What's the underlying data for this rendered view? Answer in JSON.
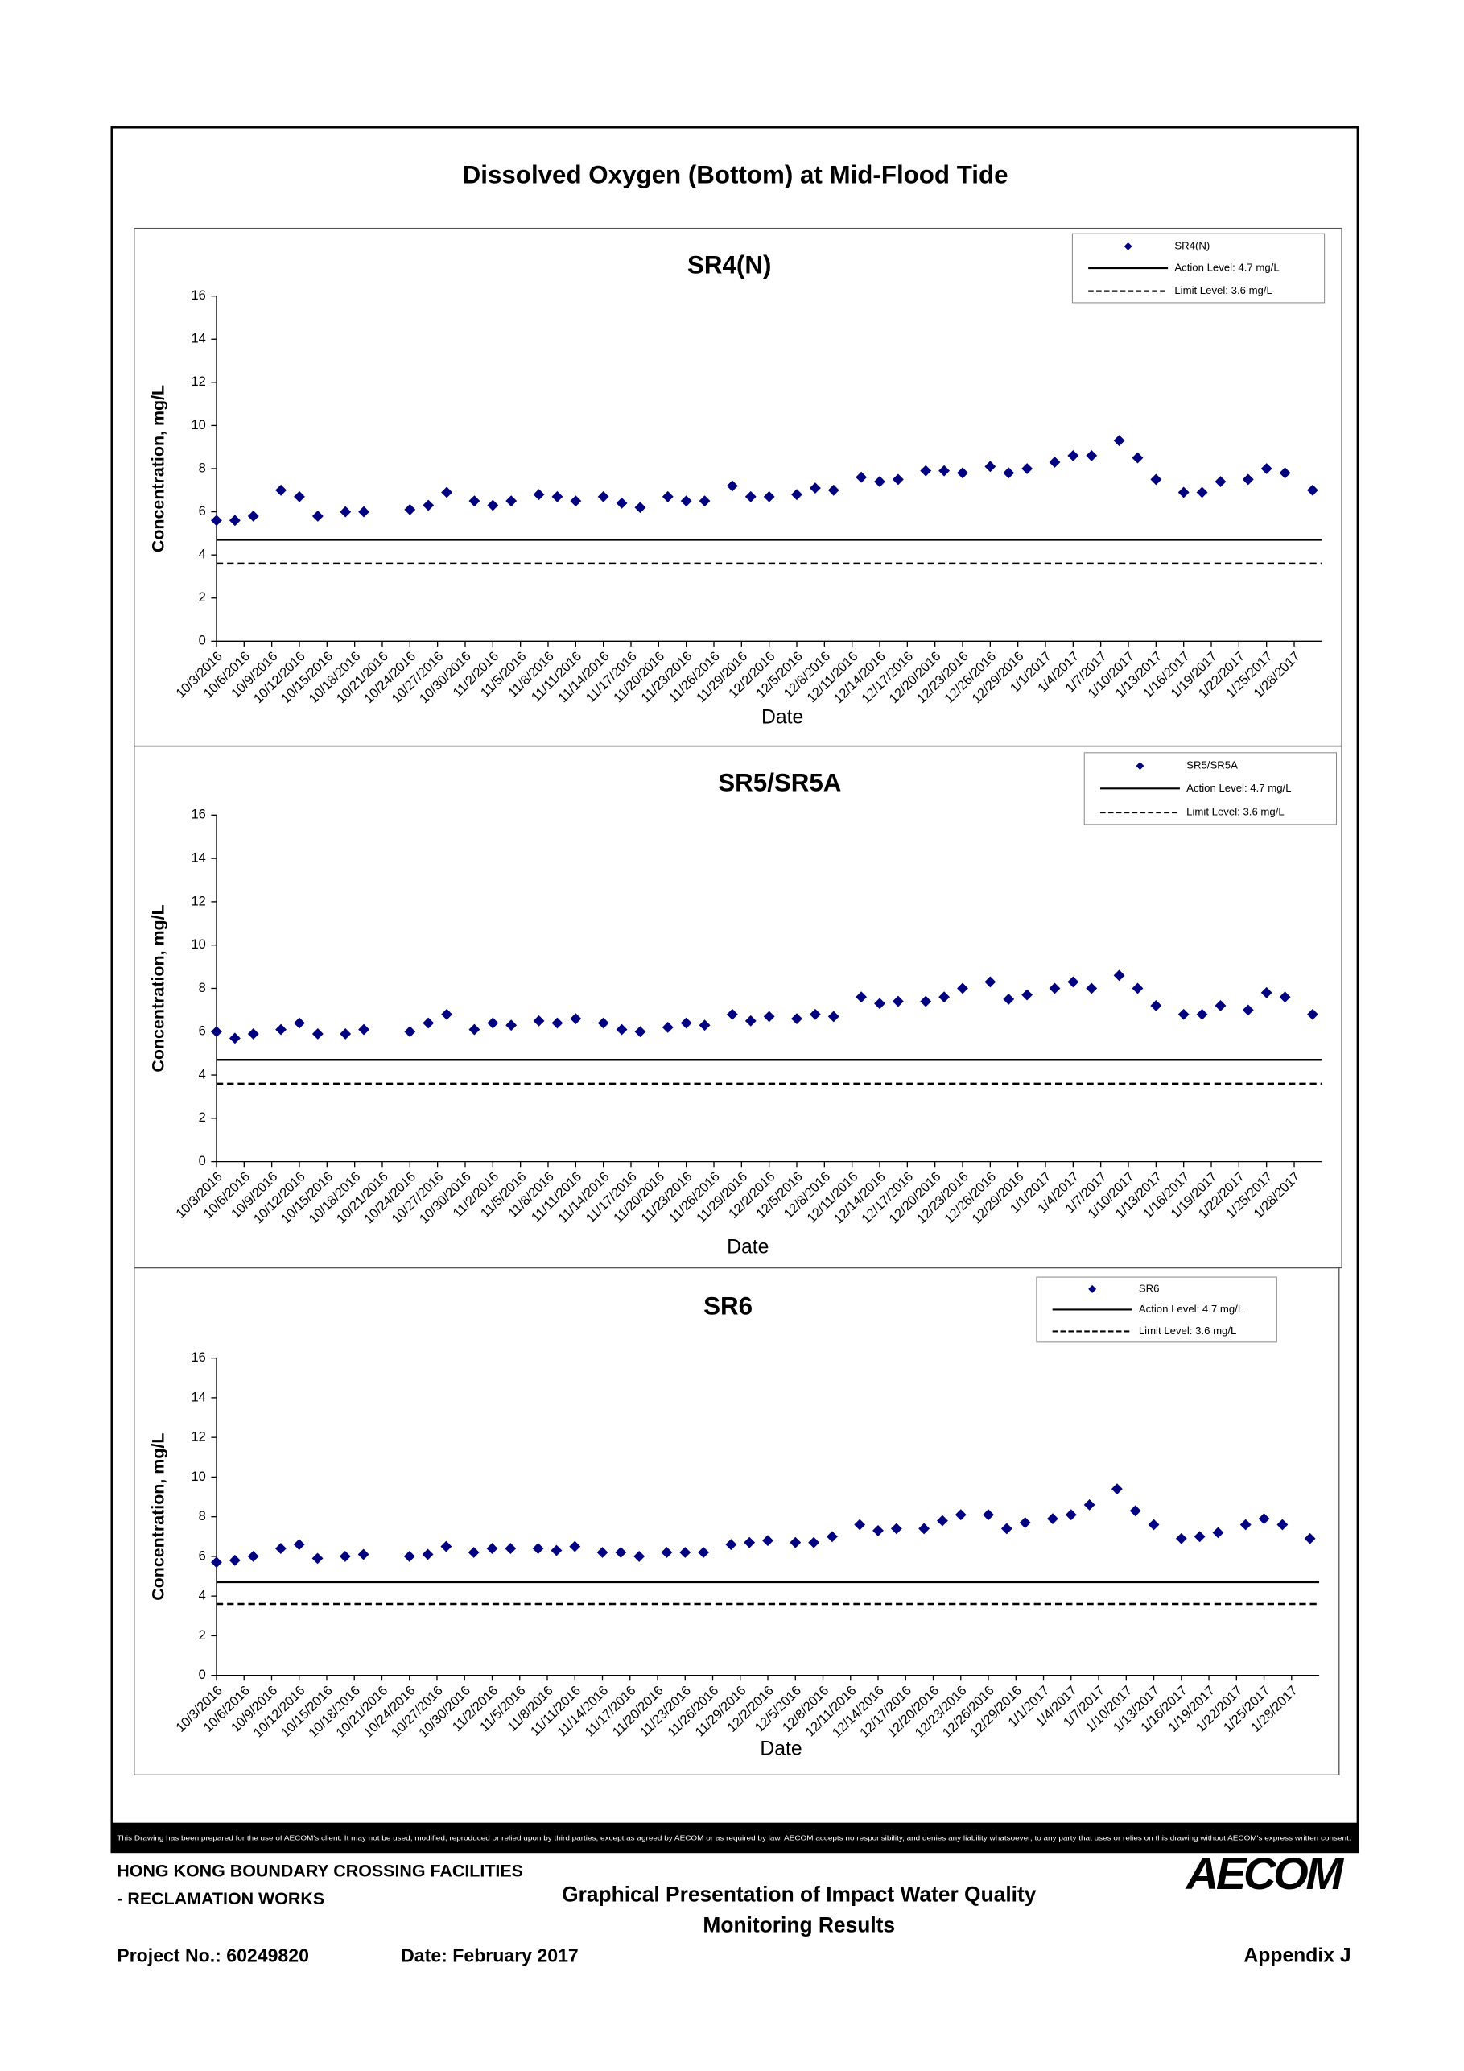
{
  "page_title": "Dissolved Oxygen (Bottom) at Mid-Flood Tide",
  "footer": {
    "disclaimer": "This Drawing has been prepared for the use of AECOM's client. It may not be used, modified, reproduced or relied upon by third parties, except as agreed by AECOM or as required by law. AECOM accepts no responsibility, and denies any liability whatsoever, to any party that uses or relies on this drawing without AECOM's express written consent.",
    "project_line1": "HONG KONG BOUNDARY CROSSING FACILITIES",
    "project_line2": "- RECLAMATION WORKS",
    "drawing_title_line1": "Graphical Presentation of Impact Water Quality",
    "drawing_title_line2": "Monitoring Results",
    "project_no": "Project No.: 60249820",
    "date": "Date: February 2017",
    "appendix": "Appendix J",
    "logo": "AECOM"
  },
  "chart_data": [
    {
      "type": "scatter",
      "title": "SR4(N)",
      "x_label": "Date",
      "y_label": "Concentration, mg/L",
      "x": [
        "10/3/2016",
        "10/5/2016",
        "10/7/2016",
        "10/10/2016",
        "10/12/2016",
        "10/14/2016",
        "10/17/2016",
        "10/19/2016",
        "10/24/2016",
        "10/26/2016",
        "10/28/2016",
        "10/31/2016",
        "11/2/2016",
        "11/4/2016",
        "11/7/2016",
        "11/9/2016",
        "11/11/2016",
        "11/14/2016",
        "11/16/2016",
        "11/18/2016",
        "11/21/2016",
        "11/23/2016",
        "11/25/2016",
        "11/28/2016",
        "11/30/2016",
        "12/2/2016",
        "12/5/2016",
        "12/7/2016",
        "12/9/2016",
        "12/12/2016",
        "12/14/2016",
        "12/16/2016",
        "12/19/2016",
        "12/21/2016",
        "12/23/2016",
        "12/26/2016",
        "12/28/2016",
        "12/30/2016",
        "1/2/2017",
        "1/4/2017",
        "1/6/2017",
        "1/9/2017",
        "1/11/2017",
        "1/13/2017",
        "1/16/2017",
        "1/18/2017",
        "1/20/2017",
        "1/23/2017",
        "1/25/2017",
        "1/27/2017",
        "1/30/2017"
      ],
      "xlim": [
        "10/3/2016",
        "1/31/2017"
      ],
      "xticks": [
        "10/3/2016",
        "10/6/2016",
        "10/9/2016",
        "10/12/2016",
        "10/15/2016",
        "10/18/2016",
        "10/21/2016",
        "10/24/2016",
        "10/27/2016",
        "10/30/2016",
        "11/2/2016",
        "11/5/2016",
        "11/8/2016",
        "11/11/2016",
        "11/14/2016",
        "11/17/2016",
        "11/20/2016",
        "11/23/2016",
        "11/26/2016",
        "11/29/2016",
        "12/2/2016",
        "12/5/2016",
        "12/8/2016",
        "12/11/2016",
        "12/14/2016",
        "12/17/2016",
        "12/20/2016",
        "12/23/2016",
        "12/26/2016",
        "12/29/2016",
        "1/1/2017",
        "1/4/2017",
        "1/7/2017",
        "1/10/2017",
        "1/13/2017",
        "1/16/2017",
        "1/19/2017",
        "1/22/2017",
        "1/25/2017",
        "1/28/2017"
      ],
      "ylim": [
        0,
        16
      ],
      "yticks": [
        0,
        2,
        4,
        6,
        8,
        10,
        12,
        14,
        16
      ],
      "series": [
        {
          "name": "SR4(N)",
          "color": "#000080",
          "values": [
            5.6,
            5.6,
            5.8,
            7.0,
            6.7,
            5.8,
            6.0,
            6.0,
            6.1,
            6.3,
            6.9,
            6.5,
            6.3,
            6.5,
            6.8,
            6.7,
            6.5,
            6.7,
            6.4,
            6.2,
            6.7,
            6.5,
            6.5,
            7.2,
            6.7,
            6.7,
            6.8,
            7.1,
            7.0,
            7.6,
            7.4,
            7.5,
            7.9,
            7.9,
            7.8,
            8.1,
            7.8,
            8.0,
            8.3,
            8.6,
            8.6,
            9.3,
            8.5,
            7.5,
            6.9,
            6.9,
            7.4,
            7.5,
            8.0,
            7.8,
            7.0
          ]
        }
      ],
      "reference_lines": [
        {
          "name": "Action Level: 4.7 mg/L",
          "value": 4.7,
          "style": "solid",
          "color": "#000000"
        },
        {
          "name": "Limit Level: 3.6 mg/L",
          "value": 3.6,
          "style": "dashed",
          "color": "#000000"
        }
      ]
    },
    {
      "type": "scatter",
      "title": "SR5/SR5A",
      "x_label": "Date",
      "y_label": "Concentration, mg/L",
      "x": [
        "10/3/2016",
        "10/5/2016",
        "10/7/2016",
        "10/10/2016",
        "10/12/2016",
        "10/14/2016",
        "10/17/2016",
        "10/19/2016",
        "10/24/2016",
        "10/26/2016",
        "10/28/2016",
        "10/31/2016",
        "11/2/2016",
        "11/4/2016",
        "11/7/2016",
        "11/9/2016",
        "11/11/2016",
        "11/14/2016",
        "11/16/2016",
        "11/18/2016",
        "11/21/2016",
        "11/23/2016",
        "11/25/2016",
        "11/28/2016",
        "11/30/2016",
        "12/2/2016",
        "12/5/2016",
        "12/7/2016",
        "12/9/2016",
        "12/12/2016",
        "12/14/2016",
        "12/16/2016",
        "12/19/2016",
        "12/21/2016",
        "12/23/2016",
        "12/26/2016",
        "12/28/2016",
        "12/30/2016",
        "1/2/2017",
        "1/4/2017",
        "1/6/2017",
        "1/9/2017",
        "1/11/2017",
        "1/13/2017",
        "1/16/2017",
        "1/18/2017",
        "1/20/2017",
        "1/23/2017",
        "1/25/2017",
        "1/27/2017",
        "1/30/2017"
      ],
      "xlim": [
        "10/3/2016",
        "1/31/2017"
      ],
      "xticks": [
        "10/3/2016",
        "10/6/2016",
        "10/9/2016",
        "10/12/2016",
        "10/15/2016",
        "10/18/2016",
        "10/21/2016",
        "10/24/2016",
        "10/27/2016",
        "10/30/2016",
        "11/2/2016",
        "11/5/2016",
        "11/8/2016",
        "11/11/2016",
        "11/14/2016",
        "11/17/2016",
        "11/20/2016",
        "11/23/2016",
        "11/26/2016",
        "11/29/2016",
        "12/2/2016",
        "12/5/2016",
        "12/8/2016",
        "12/11/2016",
        "12/14/2016",
        "12/17/2016",
        "12/20/2016",
        "12/23/2016",
        "12/26/2016",
        "12/29/2016",
        "1/1/2017",
        "1/4/2017",
        "1/7/2017",
        "1/10/2017",
        "1/13/2017",
        "1/16/2017",
        "1/19/2017",
        "1/22/2017",
        "1/25/2017",
        "1/28/2017"
      ],
      "ylim": [
        0,
        16
      ],
      "yticks": [
        0,
        2,
        4,
        6,
        8,
        10,
        12,
        14,
        16
      ],
      "series": [
        {
          "name": "SR5/SR5A",
          "color": "#000080",
          "values": [
            6.0,
            5.7,
            5.9,
            6.1,
            6.4,
            5.9,
            5.9,
            6.1,
            6.0,
            6.4,
            6.8,
            6.1,
            6.4,
            6.3,
            6.5,
            6.4,
            6.6,
            6.4,
            6.1,
            6.0,
            6.2,
            6.4,
            6.3,
            6.8,
            6.5,
            6.7,
            6.6,
            6.8,
            6.7,
            7.6,
            7.3,
            7.4,
            7.4,
            7.6,
            8.0,
            8.3,
            7.5,
            7.7,
            8.0,
            8.3,
            8.0,
            8.6,
            8.0,
            7.2,
            6.8,
            6.8,
            7.2,
            7.0,
            7.8,
            7.6,
            6.8
          ]
        }
      ],
      "reference_lines": [
        {
          "name": "Action Level: 4.7 mg/L",
          "value": 4.7,
          "style": "solid",
          "color": "#000000"
        },
        {
          "name": "Limit Level: 3.6 mg/L",
          "value": 3.6,
          "style": "dashed",
          "color": "#000000"
        }
      ]
    },
    {
      "type": "scatter",
      "title": "SR6",
      "x_label": "Date",
      "y_label": "Concentration, mg/L",
      "x": [
        "10/3/2016",
        "10/5/2016",
        "10/7/2016",
        "10/10/2016",
        "10/12/2016",
        "10/14/2016",
        "10/17/2016",
        "10/19/2016",
        "10/24/2016",
        "10/26/2016",
        "10/28/2016",
        "10/31/2016",
        "11/2/2016",
        "11/4/2016",
        "11/7/2016",
        "11/9/2016",
        "11/11/2016",
        "11/14/2016",
        "11/16/2016",
        "11/18/2016",
        "11/21/2016",
        "11/23/2016",
        "11/25/2016",
        "11/28/2016",
        "11/30/2016",
        "12/2/2016",
        "12/5/2016",
        "12/7/2016",
        "12/9/2016",
        "12/12/2016",
        "12/14/2016",
        "12/16/2016",
        "12/19/2016",
        "12/21/2016",
        "12/23/2016",
        "12/26/2016",
        "12/28/2016",
        "12/30/2016",
        "1/2/2017",
        "1/4/2017",
        "1/6/2017",
        "1/9/2017",
        "1/11/2017",
        "1/13/2017",
        "1/16/2017",
        "1/18/2017",
        "1/20/2017",
        "1/23/2017",
        "1/25/2017",
        "1/27/2017",
        "1/30/2017"
      ],
      "xlim": [
        "10/3/2016",
        "1/31/2017"
      ],
      "xticks": [
        "10/3/2016",
        "10/6/2016",
        "10/9/2016",
        "10/12/2016",
        "10/15/2016",
        "10/18/2016",
        "10/21/2016",
        "10/24/2016",
        "10/27/2016",
        "10/30/2016",
        "11/2/2016",
        "11/5/2016",
        "11/8/2016",
        "11/11/2016",
        "11/14/2016",
        "11/17/2016",
        "11/20/2016",
        "11/23/2016",
        "11/26/2016",
        "11/29/2016",
        "12/2/2016",
        "12/5/2016",
        "12/8/2016",
        "12/11/2016",
        "12/14/2016",
        "12/17/2016",
        "12/20/2016",
        "12/23/2016",
        "12/26/2016",
        "12/29/2016",
        "1/1/2017",
        "1/4/2017",
        "1/7/2017",
        "1/10/2017",
        "1/13/2017",
        "1/16/2017",
        "1/19/2017",
        "1/22/2017",
        "1/25/2017",
        "1/28/2017"
      ],
      "ylim": [
        0,
        16
      ],
      "yticks": [
        0,
        2,
        4,
        6,
        8,
        10,
        12,
        14,
        16
      ],
      "series": [
        {
          "name": "SR6",
          "color": "#000080",
          "values": [
            5.7,
            5.8,
            6.0,
            6.4,
            6.6,
            5.9,
            6.0,
            6.1,
            6.0,
            6.1,
            6.5,
            6.2,
            6.4,
            6.4,
            6.4,
            6.3,
            6.5,
            6.2,
            6.2,
            6.0,
            6.2,
            6.2,
            6.2,
            6.6,
            6.7,
            6.8,
            6.7,
            6.7,
            7.0,
            7.6,
            7.3,
            7.4,
            7.4,
            7.8,
            8.1,
            8.1,
            7.4,
            7.7,
            7.9,
            8.1,
            8.6,
            9.4,
            8.3,
            7.6,
            6.9,
            7.0,
            7.2,
            7.6,
            7.9,
            7.6,
            6.9
          ]
        }
      ],
      "reference_lines": [
        {
          "name": "Action Level: 4.7 mg/L",
          "value": 4.7,
          "style": "solid",
          "color": "#000000"
        },
        {
          "name": "Limit Level: 3.6 mg/L",
          "value": 3.6,
          "style": "dashed",
          "color": "#000000"
        }
      ]
    }
  ]
}
